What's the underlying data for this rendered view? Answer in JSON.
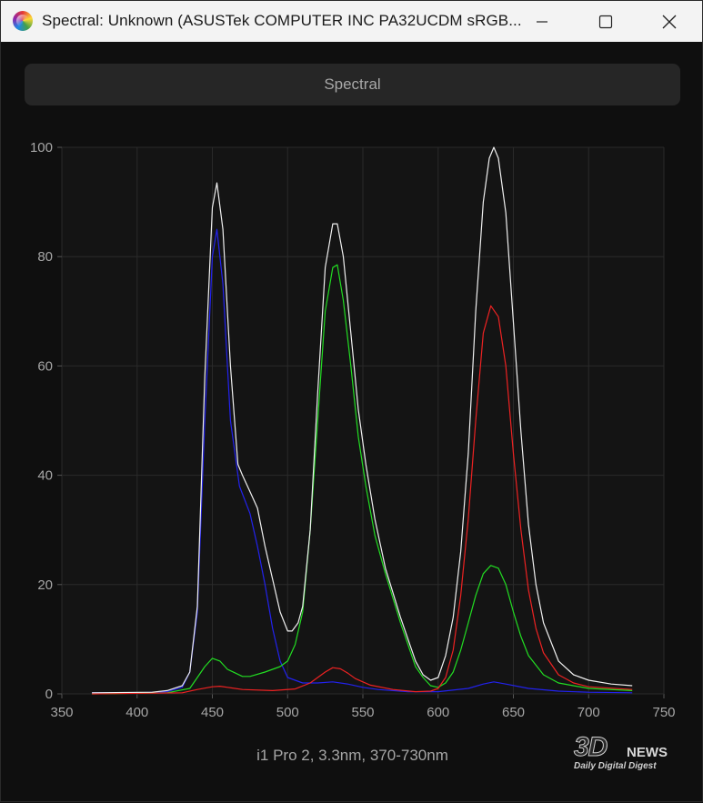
{
  "window": {
    "title": "Spectral: Unknown (ASUSTek COMPUTER INC PA32UCDM sRGB..."
  },
  "icons": {
    "app": "app-icon",
    "minimize": "minimize-icon",
    "maximize": "maximize-icon",
    "close": "close-icon"
  },
  "toolbar": {
    "spectral_label": "Spectral"
  },
  "footer": {
    "caption": "i1 Pro 2, 3.3nm, 370-730nm"
  },
  "watermark": {
    "logo": "3DNews",
    "main": "3D",
    "news": "NEWS",
    "sub": "Daily Digital Digest"
  },
  "chart_data": {
    "type": "line",
    "xlabel": "",
    "ylabel": "",
    "xlim": [
      350,
      750
    ],
    "ylim": [
      0,
      100
    ],
    "xticks": [
      350,
      400,
      450,
      500,
      550,
      600,
      650,
      700,
      750
    ],
    "yticks": [
      0,
      20,
      40,
      60,
      80,
      100
    ],
    "grid": true,
    "background": "#141414",
    "series": [
      {
        "color": "#2222ee",
        "points": [
          [
            370,
            0.2
          ],
          [
            400,
            0.2
          ],
          [
            420,
            0.4
          ],
          [
            430,
            1.2
          ],
          [
            435,
            4
          ],
          [
            440,
            15
          ],
          [
            445,
            50
          ],
          [
            450,
            80
          ],
          [
            453,
            85
          ],
          [
            457,
            75
          ],
          [
            462,
            50
          ],
          [
            468,
            38
          ],
          [
            475,
            33
          ],
          [
            480,
            27
          ],
          [
            485,
            20
          ],
          [
            490,
            12
          ],
          [
            495,
            6
          ],
          [
            500,
            3
          ],
          [
            510,
            2
          ],
          [
            520,
            2
          ],
          [
            530,
            2.2
          ],
          [
            540,
            1.8
          ],
          [
            550,
            1.2
          ],
          [
            560,
            0.8
          ],
          [
            580,
            0.4
          ],
          [
            600,
            0.4
          ],
          [
            620,
            1
          ],
          [
            630,
            1.8
          ],
          [
            637,
            2.2
          ],
          [
            645,
            1.8
          ],
          [
            660,
            1
          ],
          [
            680,
            0.5
          ],
          [
            700,
            0.3
          ],
          [
            729,
            0.2
          ]
        ]
      },
      {
        "color": "#22dd22",
        "points": [
          [
            370,
            0
          ],
          [
            420,
            0.2
          ],
          [
            435,
            1
          ],
          [
            440,
            3
          ],
          [
            445,
            5
          ],
          [
            450,
            6.5
          ],
          [
            455,
            6
          ],
          [
            460,
            4.5
          ],
          [
            470,
            3.2
          ],
          [
            475,
            3.2
          ],
          [
            485,
            4
          ],
          [
            495,
            5
          ],
          [
            500,
            6
          ],
          [
            505,
            9
          ],
          [
            510,
            15
          ],
          [
            515,
            30
          ],
          [
            520,
            50
          ],
          [
            525,
            70
          ],
          [
            530,
            78
          ],
          [
            533,
            78.5
          ],
          [
            537,
            72
          ],
          [
            542,
            60
          ],
          [
            547,
            47
          ],
          [
            552,
            38
          ],
          [
            558,
            29
          ],
          [
            565,
            22
          ],
          [
            575,
            13
          ],
          [
            585,
            5
          ],
          [
            590,
            3
          ],
          [
            595,
            1.5
          ],
          [
            600,
            1.2
          ],
          [
            605,
            2
          ],
          [
            610,
            4
          ],
          [
            615,
            8
          ],
          [
            620,
            13
          ],
          [
            625,
            18
          ],
          [
            630,
            22
          ],
          [
            635,
            23.5
          ],
          [
            640,
            23
          ],
          [
            645,
            20
          ],
          [
            650,
            15
          ],
          [
            655,
            10.5
          ],
          [
            660,
            7
          ],
          [
            670,
            3.5
          ],
          [
            680,
            2
          ],
          [
            700,
            1
          ],
          [
            729,
            0.6
          ]
        ]
      },
      {
        "color": "#ee2222",
        "points": [
          [
            370,
            0
          ],
          [
            430,
            0.2
          ],
          [
            440,
            0.8
          ],
          [
            450,
            1.3
          ],
          [
            455,
            1.4
          ],
          [
            460,
            1.2
          ],
          [
            470,
            0.8
          ],
          [
            490,
            0.6
          ],
          [
            505,
            0.9
          ],
          [
            515,
            2
          ],
          [
            525,
            4
          ],
          [
            530,
            4.8
          ],
          [
            535,
            4.6
          ],
          [
            540,
            3.8
          ],
          [
            545,
            2.8
          ],
          [
            555,
            1.6
          ],
          [
            570,
            0.8
          ],
          [
            585,
            0.4
          ],
          [
            595,
            0.5
          ],
          [
            600,
            1
          ],
          [
            605,
            3
          ],
          [
            610,
            8
          ],
          [
            615,
            18
          ],
          [
            620,
            32
          ],
          [
            625,
            50
          ],
          [
            630,
            66
          ],
          [
            635,
            71
          ],
          [
            640,
            69
          ],
          [
            645,
            60
          ],
          [
            650,
            44
          ],
          [
            655,
            30
          ],
          [
            660,
            19
          ],
          [
            665,
            12
          ],
          [
            670,
            7.5
          ],
          [
            680,
            3.5
          ],
          [
            690,
            2
          ],
          [
            700,
            1.3
          ],
          [
            729,
            0.8
          ]
        ]
      },
      {
        "color": "#f0f0f0",
        "points": [
          [
            370,
            0.2
          ],
          [
            410,
            0.3
          ],
          [
            420,
            0.6
          ],
          [
            430,
            1.5
          ],
          [
            435,
            4
          ],
          [
            440,
            16
          ],
          [
            445,
            58
          ],
          [
            450,
            89
          ],
          [
            453,
            93.5
          ],
          [
            457,
            85
          ],
          [
            462,
            60
          ],
          [
            467,
            42
          ],
          [
            470,
            40
          ],
          [
            475,
            37
          ],
          [
            480,
            34
          ],
          [
            485,
            27
          ],
          [
            490,
            21
          ],
          [
            495,
            15
          ],
          [
            500,
            11.5
          ],
          [
            503,
            11.5
          ],
          [
            507,
            13
          ],
          [
            510,
            16
          ],
          [
            515,
            30
          ],
          [
            520,
            55
          ],
          [
            525,
            78
          ],
          [
            530,
            86
          ],
          [
            533,
            86
          ],
          [
            537,
            80
          ],
          [
            542,
            66
          ],
          [
            547,
            52
          ],
          [
            552,
            42
          ],
          [
            558,
            32
          ],
          [
            565,
            23
          ],
          [
            575,
            14
          ],
          [
            585,
            6
          ],
          [
            590,
            3.5
          ],
          [
            595,
            2.5
          ],
          [
            600,
            3
          ],
          [
            605,
            7
          ],
          [
            610,
            14
          ],
          [
            615,
            26
          ],
          [
            620,
            44
          ],
          [
            625,
            70
          ],
          [
            630,
            90
          ],
          [
            634,
            98
          ],
          [
            637,
            100
          ],
          [
            640,
            98
          ],
          [
            645,
            88
          ],
          [
            650,
            68
          ],
          [
            655,
            48
          ],
          [
            660,
            31
          ],
          [
            665,
            20
          ],
          [
            670,
            13
          ],
          [
            680,
            6
          ],
          [
            690,
            3.5
          ],
          [
            700,
            2.5
          ],
          [
            715,
            1.8
          ],
          [
            729,
            1.5
          ]
        ]
      }
    ]
  }
}
